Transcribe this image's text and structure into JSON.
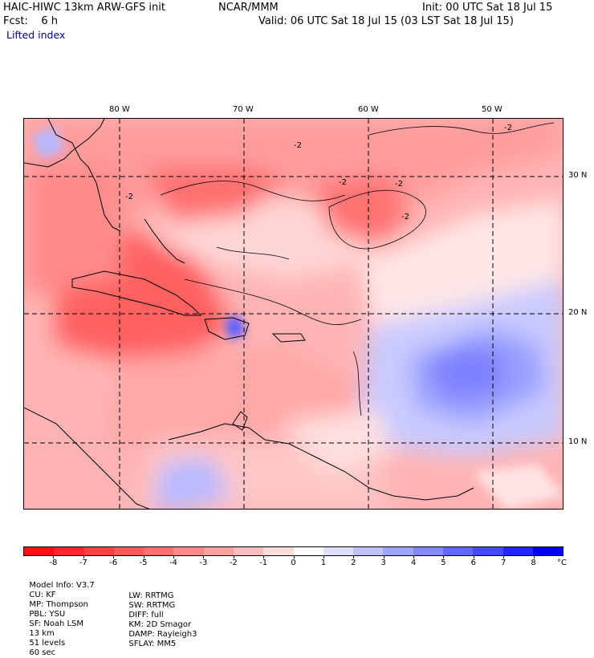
{
  "header": {
    "model": "HAIC-HIWC 13km ARW-GFS init",
    "org": "NCAR/MMM",
    "init": "Init: 00 UTC Sat 18 Jul 15",
    "fcst": "Fcst:    6 h",
    "valid": "Valid: 06 UTC Sat 18 Jul 15 (03 LST Sat 18 Jul 15)",
    "field": "Lifted index"
  },
  "axes": {
    "lon_labels": [
      "80 W",
      "70 W",
      "60 W",
      "50 W"
    ],
    "lat_labels": [
      "30 N",
      "20 N",
      "10 N"
    ]
  },
  "colorbar": {
    "labels": [
      "-8",
      "-7",
      "-6",
      "-5",
      "-4",
      "-3",
      "-2",
      "-1",
      "0",
      "1",
      "2",
      "3",
      "4",
      "5",
      "6",
      "7",
      "8"
    ],
    "unit": "°C",
    "colors": [
      "#ff1010",
      "#ff2828",
      "#ff4040",
      "#ff5858",
      "#ff7070",
      "#ff8888",
      "#ffa0a0",
      "#ffbcbc",
      "#ffdcdc",
      "#ffffff",
      "#dfe0ff",
      "#c0c2ff",
      "#a0a4ff",
      "#8488ff",
      "#6468ff",
      "#4448ff",
      "#2226ff",
      "#0000f0"
    ]
  },
  "footer": {
    "line1": [
      "Model Info: V3.7",
      "CU: KF",
      "MP: Thompson",
      "PBL: YSU",
      "SF: Noah LSM",
      "13 km",
      "51 levels",
      "60 sec"
    ],
    "line2": [
      "LW: RRTMG",
      "SW: RRTMG",
      "DIFF: full",
      "KM: 2D Smagor",
      "DAMP: Rayleigh3",
      "SFLAY: MM5"
    ]
  },
  "map": {
    "contour_labels": [
      "-2",
      "-2",
      "-2",
      "-2",
      "-2",
      "-2"
    ]
  }
}
